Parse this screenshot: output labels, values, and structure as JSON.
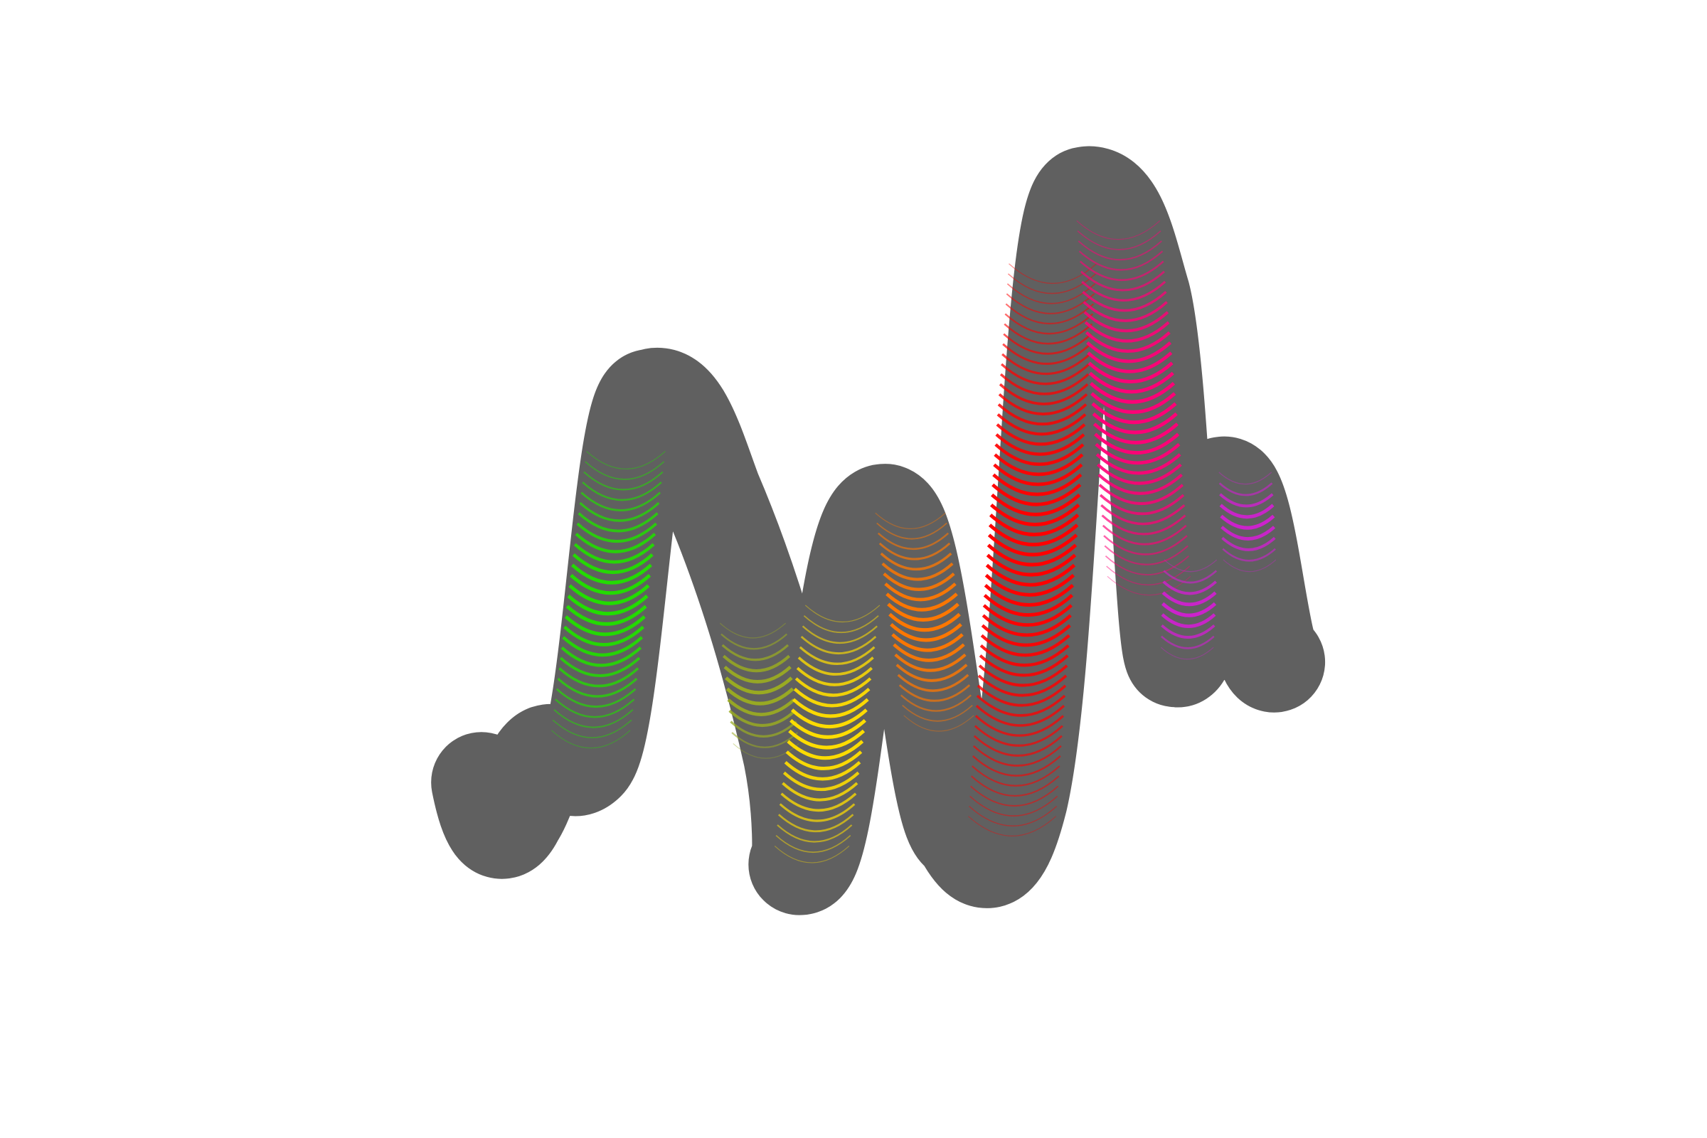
{
  "artwork": {
    "background_color": "#ffffff",
    "stroke_color": "#606060",
    "band_colors": {
      "green": "#22dd00",
      "olive": "#99aa22",
      "yellow": "#ffdd00",
      "orange": "#ff7700",
      "red": "#ff0000",
      "pink": "#ff0077",
      "purple": "#cc22cc"
    }
  }
}
